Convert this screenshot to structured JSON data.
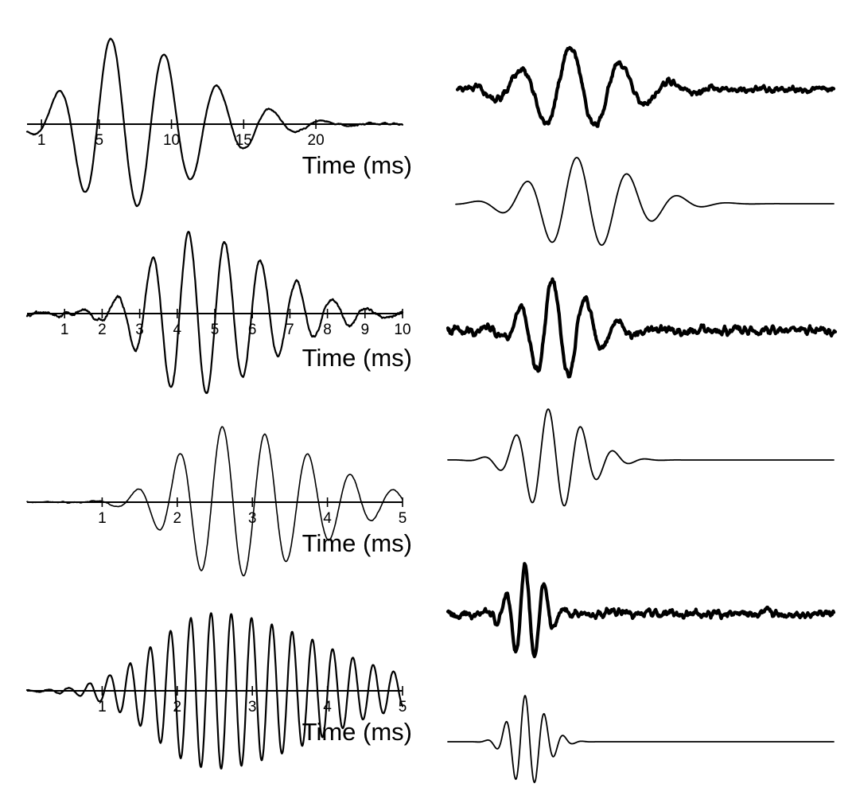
{
  "chart_data": [
    {
      "type": "line",
      "panel": "left-1",
      "xlabel": "Time (ms)",
      "xlim": [
        0,
        26
      ],
      "ticks": [
        1,
        5,
        10,
        15,
        20
      ],
      "tick_labels": [
        "1",
        "5",
        "10",
        "15",
        "20"
      ],
      "ylabel": "",
      "series": [
        {
          "wavelet": {
            "center": 5.8,
            "period": 3.7,
            "amp": 1.0,
            "width": 2.6,
            "decay_after": 6.5
          },
          "noise": 0.04,
          "envelope_peak_x": 5.8,
          "envelope_peak_y": 1.0,
          "ylim": [
            -1.05,
            1.05
          ]
        }
      ]
    },
    {
      "type": "line",
      "panel": "left-2",
      "xlabel": "Time (ms)",
      "xlim": [
        0,
        10
      ],
      "ticks": [
        1,
        2,
        3,
        4,
        5,
        6,
        7,
        8,
        9,
        10
      ],
      "tick_labels": [
        "1",
        "2",
        "3",
        "4",
        "5",
        "6",
        "7",
        "8",
        "9",
        "10"
      ],
      "ylabel": "",
      "series": [
        {
          "wavelet": {
            "center": 4.3,
            "period": 0.96,
            "amp": 1.0,
            "width": 1.1,
            "decay_after": 2.0
          },
          "noise": 0.09,
          "ylim": [
            -1.05,
            1.05
          ]
        }
      ]
    },
    {
      "type": "line",
      "panel": "left-3",
      "xlabel": "Time (ms)",
      "xlim": [
        0,
        5
      ],
      "ticks": [
        1,
        2,
        3,
        4,
        5
      ],
      "tick_labels": [
        "1",
        "2",
        "3",
        "4",
        "5"
      ],
      "ylabel": "",
      "series": [
        {
          "wavelet": {
            "center": 2.6,
            "period": 0.57,
            "amp": 1.0,
            "width": 0.6,
            "decay_after": 1.2
          },
          "noise": 0.03,
          "ylim": [
            -1.05,
            1.05
          ]
        }
      ]
    },
    {
      "type": "line",
      "panel": "left-4",
      "xlabel": "Time (ms)",
      "xlim": [
        0,
        5
      ],
      "ticks": [
        1,
        2,
        3,
        4,
        5
      ],
      "tick_labels": [
        "1",
        "2",
        "3",
        "4",
        "5"
      ],
      "ylabel": "",
      "series": [
        {
          "wavelet": {
            "center": 2.45,
            "period": 0.27,
            "amp": 1.0,
            "width": 0.75,
            "decay_after": 1.4
          },
          "noise": 0.03,
          "ylim": [
            -1.05,
            1.05
          ]
        }
      ]
    },
    {
      "type": "line",
      "panel": "right-column",
      "xlabel": "",
      "ylabel": "",
      "xlim": [
        0,
        1
      ],
      "series": [
        {
          "name": "",
          "noisy": true,
          "center": 0.3,
          "period": 0.135,
          "width": 0.11,
          "noise": 0.16
        },
        {
          "name": "",
          "noisy": false,
          "center": 0.32,
          "period": 0.135,
          "width": 0.11,
          "noise": 0.0
        },
        {
          "name": "",
          "noisy": true,
          "center": 0.27,
          "period": 0.085,
          "width": 0.07,
          "noise": 0.17
        },
        {
          "name": "",
          "noisy": false,
          "center": 0.26,
          "period": 0.085,
          "width": 0.07,
          "noise": 0.0
        },
        {
          "name": "",
          "noisy": true,
          "center": 0.2,
          "period": 0.05,
          "width": 0.038,
          "noise": 0.16
        },
        {
          "name": "",
          "noisy": false,
          "center": 0.2,
          "period": 0.05,
          "width": 0.038,
          "noise": 0.0
        }
      ]
    }
  ]
}
